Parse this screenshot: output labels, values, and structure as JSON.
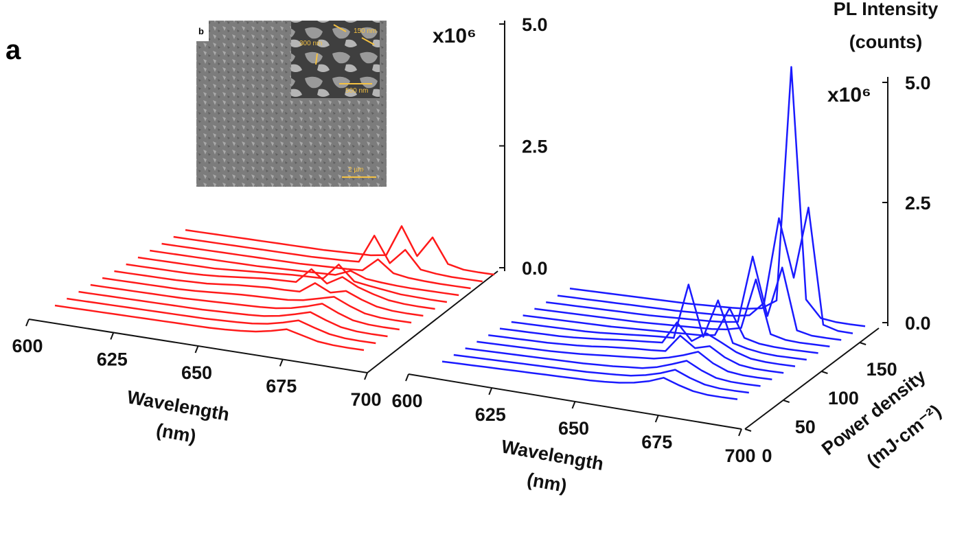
{
  "panel_label": "a",
  "inset": {
    "label": "b",
    "annotations": [
      "300 nm",
      "150 nm",
      "500 nm"
    ],
    "scale_bar": "2 µm"
  },
  "chart_data": [
    {
      "type": "waterfall",
      "xlabel": [
        "Wavelength",
        "(nm)"
      ],
      "y_unit": "x10⁶",
      "x": [
        600,
        605,
        610,
        615,
        620,
        625,
        630,
        635,
        640,
        645,
        650,
        655,
        660,
        665,
        670,
        675,
        680,
        685,
        690,
        695,
        700
      ],
      "xlim": [
        600,
        700
      ],
      "xticks": [
        600,
        625,
        650,
        675,
        700
      ],
      "ylim": [
        0,
        5
      ],
      "yticks": [
        {
          "value": 0,
          "label": "0.0"
        },
        2.5,
        {
          "value": 5,
          "label": "5.0"
        }
      ],
      "series": [
        {
          "color": "#ff1a1a",
          "values": [
            0,
            0,
            0,
            0,
            0,
            0,
            0,
            0,
            0,
            0,
            0,
            0.01,
            0.03,
            0.06,
            0.12,
            0.2,
            0.12,
            0.04,
            0.01,
            0,
            0
          ]
        },
        {
          "color": "#ff1a1a",
          "values": [
            0,
            0,
            0,
            0,
            0,
            0,
            0,
            0,
            0,
            0,
            0.01,
            0.02,
            0.04,
            0.08,
            0.15,
            0.24,
            0.14,
            0.05,
            0.01,
            0,
            0
          ]
        },
        {
          "color": "#ff1a1a",
          "values": [
            0,
            0,
            0,
            0,
            0,
            0,
            0,
            0,
            0,
            0.01,
            0.02,
            0.03,
            0.05,
            0.1,
            0.18,
            0.27,
            0.15,
            0.05,
            0.01,
            0,
            0
          ]
        },
        {
          "color": "#ff1a1a",
          "values": [
            0,
            0,
            0,
            0,
            0,
            0,
            0,
            0.01,
            0.02,
            0.03,
            0.04,
            0.05,
            0.07,
            0.12,
            0.2,
            0.3,
            0.16,
            0.05,
            0.01,
            0,
            0
          ]
        },
        {
          "color": "#ff1a1a",
          "values": [
            0,
            0,
            0,
            0,
            0,
            0,
            0.01,
            0.03,
            0.05,
            0.07,
            0.08,
            0.09,
            0.1,
            0.14,
            0.22,
            0.3,
            0.16,
            0.05,
            0.01,
            0,
            0
          ]
        },
        {
          "color": "#ff1a1a",
          "values": [
            0,
            0,
            0,
            0,
            0,
            0.01,
            0.02,
            0.05,
            0.08,
            0.1,
            0.12,
            0.12,
            0.13,
            0.35,
            0.2,
            0.28,
            0.15,
            0.05,
            0.01,
            0,
            0
          ]
        },
        {
          "color": "#ff1a1a",
          "values": [
            0,
            0,
            0,
            0,
            0,
            0.01,
            0.03,
            0.06,
            0.09,
            0.12,
            0.13,
            0.14,
            0.45,
            0.2,
            0.38,
            0.22,
            0.12,
            0.04,
            0.01,
            0,
            0
          ]
        },
        {
          "color": "#ff1a1a",
          "values": [
            0,
            0,
            0,
            0,
            0,
            0,
            0.02,
            0.04,
            0.06,
            0.08,
            0.1,
            0.11,
            0.12,
            0.45,
            0.15,
            0.1,
            0.06,
            0.02,
            0.01,
            0,
            0
          ]
        },
        {
          "color": "#ff1a1a",
          "values": [
            0,
            0,
            0,
            0,
            0,
            0,
            0,
            0,
            0.01,
            0.02,
            0.03,
            0.04,
            0.05,
            0.18,
            0.06,
            0.03,
            0.01,
            0,
            0,
            0,
            0
          ]
        },
        {
          "color": "#ff1a1a",
          "values": [
            0,
            0,
            0,
            0,
            0,
            0,
            0,
            0,
            0,
            0,
            0.01,
            0.02,
            0.03,
            0.05,
            0.32,
            0.08,
            0.03,
            0.01,
            0,
            0,
            0
          ]
        },
        {
          "color": "#ff1a1a",
          "values": [
            0,
            0,
            0,
            0,
            0,
            0,
            0,
            0,
            0,
            0,
            0.01,
            0.02,
            0.04,
            0.62,
            0.1,
            0.42,
            0.06,
            0.02,
            0,
            0,
            0
          ]
        },
        {
          "color": "#ff1a1a",
          "values": [
            0,
            0,
            0,
            0,
            0,
            0,
            0,
            0,
            0,
            0,
            0.01,
            0.02,
            0.03,
            0.08,
            0.72,
            0.15,
            0.58,
            0.08,
            0.01,
            0,
            0
          ]
        }
      ]
    },
    {
      "type": "waterfall",
      "xlabel": [
        "Wavelength",
        "(nm)"
      ],
      "y_unit": "x10⁶",
      "ylabel": [
        "PL Intensity",
        "(counts)"
      ],
      "zlabel": [
        "Power density",
        "(mJ·cm⁻²)"
      ],
      "x": [
        600,
        605,
        610,
        615,
        620,
        625,
        630,
        635,
        640,
        645,
        650,
        655,
        660,
        665,
        670,
        675,
        680,
        685,
        690,
        695,
        700
      ],
      "xlim": [
        600,
        700
      ],
      "xticks": [
        600,
        625,
        650,
        675,
        700
      ],
      "ylim": [
        0,
        5
      ],
      "yticks": [
        {
          "value": 0,
          "label": "0.0"
        },
        2.5,
        {
          "value": 5,
          "label": "5.0"
        }
      ],
      "zlim": [
        0,
        175
      ],
      "zticks": [
        0,
        50,
        100,
        150
      ],
      "series": [
        {
          "color": "#1a1aff",
          "z": 5,
          "values": [
            0,
            0,
            0,
            0,
            0,
            0,
            0,
            0,
            0,
            0,
            0,
            0.01,
            0.03,
            0.07,
            0.14,
            0.25,
            0.14,
            0.05,
            0.01,
            0,
            0
          ]
        },
        {
          "color": "#1a1aff",
          "z": 19,
          "values": [
            0,
            0,
            0,
            0,
            0,
            0,
            0,
            0,
            0,
            0,
            0.01,
            0.02,
            0.04,
            0.09,
            0.17,
            0.28,
            0.15,
            0.05,
            0.01,
            0,
            0
          ]
        },
        {
          "color": "#1a1aff",
          "z": 33,
          "values": [
            0,
            0,
            0,
            0,
            0,
            0,
            0,
            0,
            0,
            0.01,
            0.02,
            0.04,
            0.06,
            0.12,
            0.22,
            0.33,
            0.17,
            0.05,
            0.01,
            0,
            0
          ]
        },
        {
          "color": "#1a1aff",
          "z": 47,
          "values": [
            0,
            0,
            0,
            0,
            0,
            0,
            0.01,
            0.02,
            0.04,
            0.06,
            0.08,
            0.1,
            0.12,
            0.18,
            0.27,
            0.38,
            0.18,
            0.05,
            0.01,
            0,
            0
          ]
        },
        {
          "color": "#1a1aff",
          "z": 61,
          "values": [
            0,
            0,
            0,
            0,
            0,
            0.01,
            0.02,
            0.04,
            0.07,
            0.09,
            0.11,
            0.12,
            0.14,
            0.5,
            0.28,
            0.36,
            0.17,
            0.05,
            0.01,
            0,
            0
          ]
        },
        {
          "color": "#1a1aff",
          "z": 75,
          "values": [
            0,
            0,
            0,
            0,
            0,
            0.01,
            0.03,
            0.05,
            0.08,
            0.1,
            0.12,
            0.14,
            0.6,
            0.25,
            0.45,
            0.3,
            0.14,
            0.04,
            0.01,
            0,
            0
          ]
        },
        {
          "color": "#1a1aff",
          "z": 89,
          "values": [
            0,
            0,
            0,
            0,
            0,
            0,
            0.01,
            0.03,
            0.05,
            0.07,
            0.09,
            0.1,
            1.25,
            0.2,
            1.0,
            0.15,
            0.07,
            0.02,
            0,
            0,
            0
          ]
        },
        {
          "color": "#1a1aff",
          "z": 103,
          "values": [
            0,
            0,
            0,
            0,
            0,
            0,
            0,
            0.01,
            0.02,
            0.03,
            0.04,
            0.05,
            0.06,
            0.1,
            0.7,
            0.12,
            0.04,
            0.01,
            0,
            0,
            0
          ]
        },
        {
          "color": "#1a1aff",
          "z": 117,
          "values": [
            0,
            0,
            0,
            0,
            0,
            0,
            0,
            0,
            0.01,
            0.02,
            0.03,
            0.04,
            0.05,
            0.08,
            0.15,
            1.2,
            0.1,
            0.02,
            0,
            0,
            0
          ]
        },
        {
          "color": "#1a1aff",
          "z": 131,
          "values": [
            0,
            0,
            0,
            0,
            0,
            0,
            0,
            0,
            0.01,
            0.02,
            0.03,
            0.04,
            0.06,
            0.1,
            1.5,
            0.3,
            1.35,
            0.08,
            0.01,
            0,
            0
          ]
        },
        {
          "color": "#1a1aff",
          "z": 145,
          "values": [
            0,
            0,
            0,
            0,
            0,
            0,
            0,
            0,
            0,
            0.01,
            0.02,
            0.03,
            0.05,
            0.1,
            0.4,
            2.2,
            1.0,
            2.5,
            0.1,
            0.01,
            0
          ]
        },
        {
          "color": "#1a1aff",
          "z": 160,
          "values": [
            0,
            0,
            0,
            0,
            0,
            0,
            0,
            0,
            0,
            0.01,
            0.02,
            0.03,
            0.05,
            0.1,
            0.3,
            5.2,
            0.4,
            0.05,
            0.01,
            0,
            0
          ]
        }
      ]
    }
  ]
}
